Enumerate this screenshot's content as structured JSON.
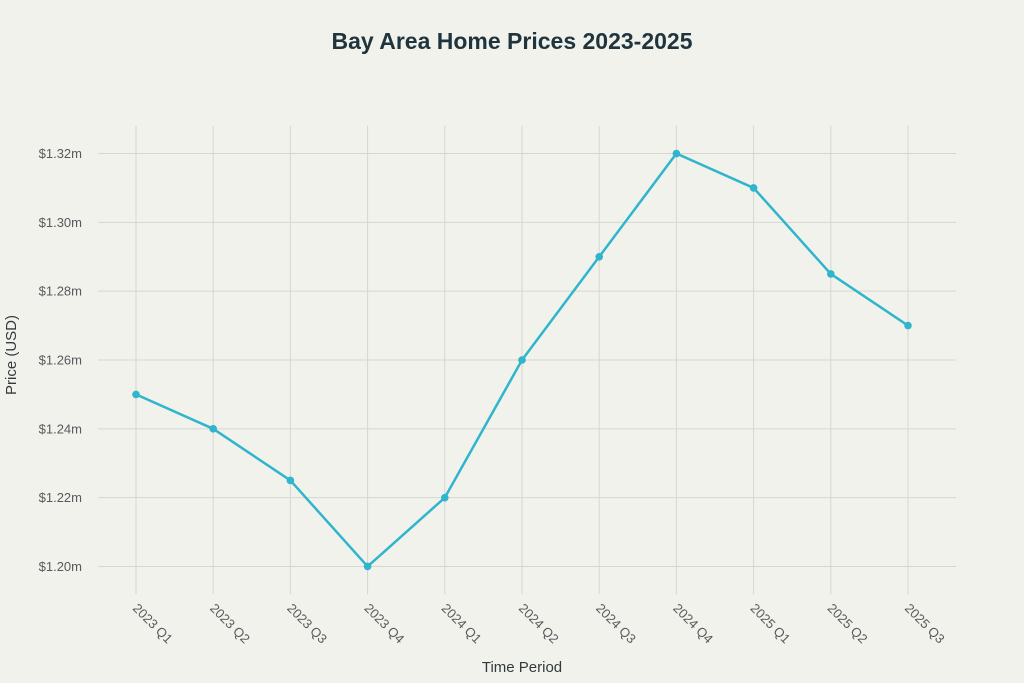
{
  "chart_data": {
    "type": "line",
    "title": "Bay Area Home Prices 2023-2025",
    "xlabel": "Time Period",
    "ylabel": "Price (USD)",
    "categories": [
      "2023 Q1",
      "2023 Q2",
      "2023 Q3",
      "2023 Q4",
      "2024 Q1",
      "2024 Q2",
      "2024 Q3",
      "2024 Q4",
      "2025 Q1",
      "2025 Q2",
      "2025 Q3"
    ],
    "values": [
      1.25,
      1.24,
      1.225,
      1.2,
      1.22,
      1.26,
      1.29,
      1.32,
      1.31,
      1.285,
      1.27
    ],
    "y_unit": "millions USD",
    "yticks": [
      1.2,
      1.22,
      1.24,
      1.26,
      1.28,
      1.3,
      1.32
    ],
    "ytick_labels": [
      "$1.20m",
      "$1.22m",
      "$1.24m",
      "$1.26m",
      "$1.28m",
      "$1.30m",
      "$1.32m"
    ],
    "ylim": [
      1.192,
      1.328
    ],
    "grid": true,
    "legend": "none",
    "colors": {
      "line": "#2fb5cc",
      "grid": "#d6d6d1",
      "background": "#f2f2ed",
      "title": "#1f343d"
    }
  }
}
